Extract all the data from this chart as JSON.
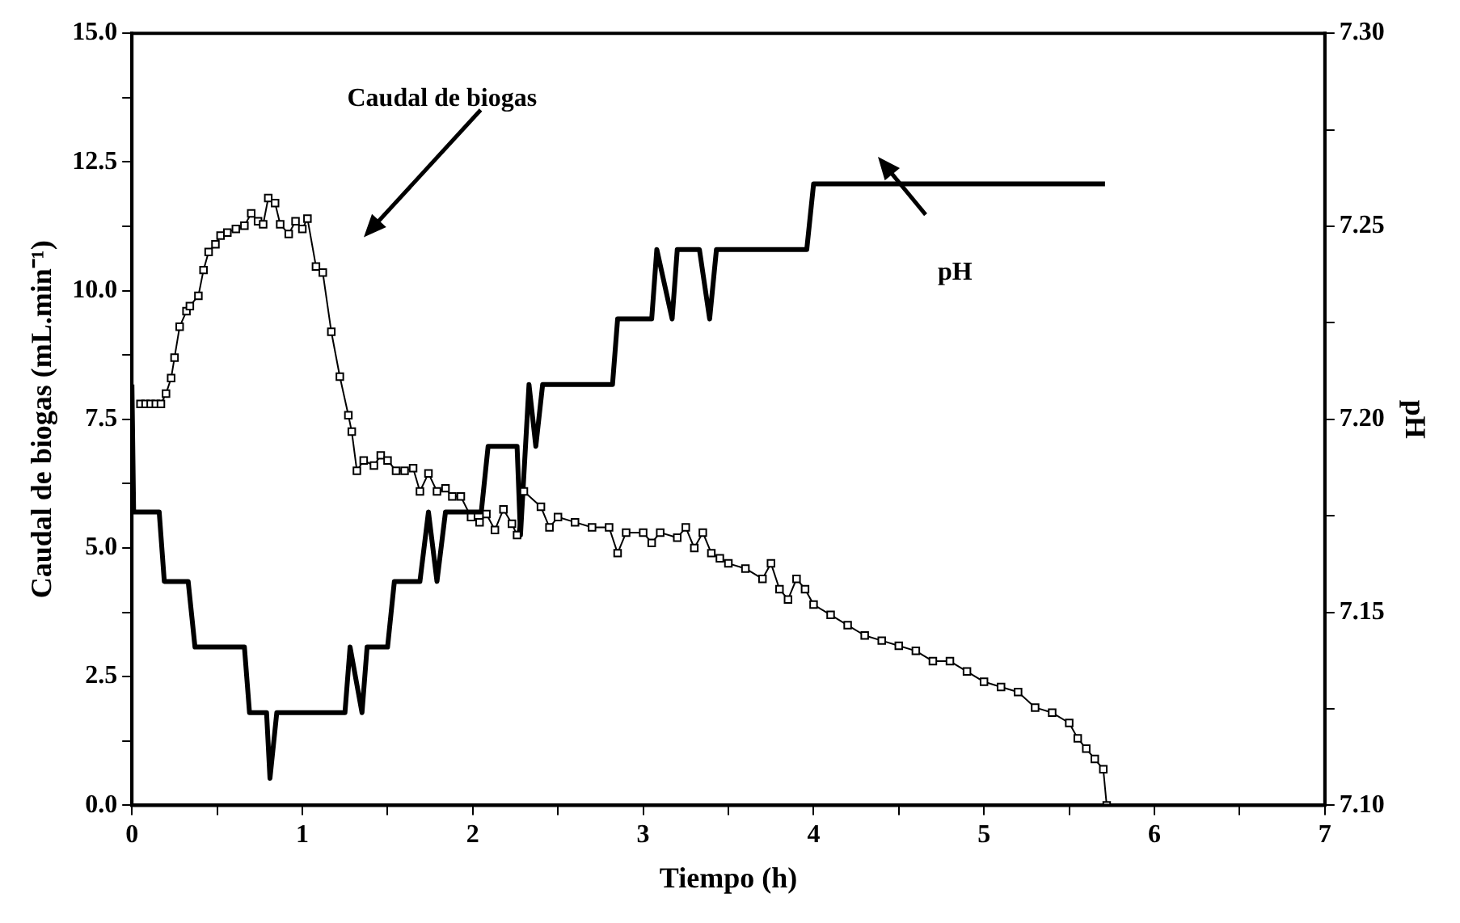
{
  "chart_data": {
    "type": "line",
    "xlabel": "Tiempo (h)",
    "ylabel": "Caudal de biogas (mL.min⁻¹)",
    "y2label": "pH",
    "grid": false,
    "legend": false,
    "xlim": [
      0,
      7
    ],
    "xticks": [
      0,
      {
        "value": 0.5,
        "label": null
      },
      1,
      {
        "value": 1.5,
        "label": null
      },
      2,
      {
        "value": 2.5,
        "label": null
      },
      3,
      {
        "value": 3.5,
        "label": null
      },
      4,
      {
        "value": 4.5,
        "label": null
      },
      5,
      {
        "value": 5.5,
        "label": null
      },
      6,
      {
        "value": 6.5,
        "label": null
      },
      7
    ],
    "ylim": [
      0,
      15
    ],
    "yticks": [
      {
        "value": 0,
        "label": "0.0"
      },
      {
        "value": 1.25,
        "label": null
      },
      {
        "value": 2.5,
        "label": "2.5"
      },
      {
        "value": 3.75,
        "label": null
      },
      {
        "value": 5,
        "label": "5.0"
      },
      {
        "value": 6.25,
        "label": null
      },
      {
        "value": 7.5,
        "label": "7.5"
      },
      {
        "value": 8.75,
        "label": null
      },
      {
        "value": 10,
        "label": "10.0"
      },
      {
        "value": 11.25,
        "label": null
      },
      {
        "value": 12.5,
        "label": "12.5"
      },
      {
        "value": 13.75,
        "label": null
      },
      {
        "value": 15,
        "label": "15.0"
      }
    ],
    "y2lim": [
      7.1,
      7.3
    ],
    "y2ticks": [
      {
        "value": 7.1,
        "label": "7.10"
      },
      {
        "value": 7.125,
        "label": null
      },
      {
        "value": 7.15,
        "label": "7.15"
      },
      {
        "value": 7.175,
        "label": null
      },
      {
        "value": 7.2,
        "label": "7.20"
      },
      {
        "value": 7.225,
        "label": null
      },
      {
        "value": 7.25,
        "label": "7.25"
      },
      {
        "value": 7.275,
        "label": null
      },
      {
        "value": 7.3,
        "label": "7.30"
      }
    ],
    "series": [
      {
        "name": "Caudal de biogas",
        "color": "#000000",
        "marker": "square",
        "x": [
          0.05,
          0.08,
          0.11,
          0.14,
          0.17,
          0.2,
          0.23,
          0.25,
          0.28,
          0.32,
          0.34,
          0.39,
          0.42,
          0.45,
          0.49,
          0.52,
          0.56,
          0.61,
          0.66,
          0.7,
          0.74,
          0.77,
          0.8,
          0.84,
          0.87,
          0.92,
          0.96,
          1.0,
          1.03,
          1.08,
          1.12,
          1.17,
          1.22,
          1.27,
          1.29,
          1.32,
          1.36,
          1.42,
          1.46,
          1.5,
          1.55,
          1.6,
          1.65,
          1.69,
          1.74,
          1.79,
          1.84,
          1.88,
          1.93,
          1.99,
          2.04,
          2.08,
          2.13,
          2.18,
          2.23,
          2.26,
          2.3,
          2.4,
          2.45,
          2.5,
          2.6,
          2.7,
          2.8,
          2.85,
          2.9,
          3.0,
          3.05,
          3.1,
          3.2,
          3.25,
          3.3,
          3.35,
          3.4,
          3.45,
          3.5,
          3.6,
          3.7,
          3.75,
          3.8,
          3.85,
          3.9,
          3.95,
          4.0,
          4.1,
          4.2,
          4.3,
          4.4,
          4.5,
          4.6,
          4.7,
          4.8,
          4.9,
          5.0,
          5.1,
          5.2,
          5.3,
          5.4,
          5.5,
          5.55,
          5.6,
          5.65,
          5.7,
          5.72
        ],
        "values": [
          7.8,
          7.8,
          7.8,
          7.8,
          7.8,
          8.0,
          8.3,
          8.7,
          9.3,
          9.6,
          9.7,
          9.9,
          10.4,
          10.75,
          10.9,
          11.07,
          11.13,
          11.2,
          11.26,
          11.5,
          11.35,
          11.29,
          11.8,
          11.7,
          11.29,
          11.1,
          11.35,
          11.2,
          11.4,
          10.47,
          10.35,
          9.2,
          8.33,
          7.58,
          7.26,
          6.5,
          6.7,
          6.6,
          6.8,
          6.7,
          6.5,
          6.5,
          6.55,
          6.1,
          6.45,
          6.1,
          6.16,
          6.0,
          6.0,
          5.6,
          5.5,
          5.66,
          5.35,
          5.75,
          5.47,
          5.25,
          6.1,
          5.8,
          5.4,
          5.6,
          5.5,
          5.4,
          5.4,
          4.9,
          5.3,
          5.3,
          5.1,
          5.3,
          5.2,
          5.4,
          5.0,
          5.3,
          4.9,
          4.8,
          4.7,
          4.6,
          4.4,
          4.7,
          4.2,
          4.0,
          4.4,
          4.2,
          3.9,
          3.7,
          3.5,
          3.3,
          3.2,
          3.1,
          3.0,
          2.8,
          2.8,
          2.6,
          2.4,
          2.3,
          2.2,
          1.9,
          1.8,
          1.6,
          1.3,
          1.1,
          0.9,
          0.7,
          0.0
        ]
      },
      {
        "name": "pH",
        "color": "#000000",
        "marker": "none",
        "axis": "y2",
        "x": [
          0,
          0.01,
          0.16,
          0.19,
          0.33,
          0.37,
          0.66,
          0.69,
          0.79,
          0.81,
          0.85,
          1.25,
          1.28,
          1.35,
          1.38,
          1.5,
          1.54,
          1.69,
          1.74,
          1.79,
          1.84,
          2.05,
          2.09,
          2.26,
          2.28,
          2.33,
          2.37,
          2.41,
          2.82,
          2.85,
          3.05,
          3.08,
          3.17,
          3.2,
          3.33,
          3.39,
          3.43,
          3.96,
          4.0,
          5.71
        ],
        "values": [
          7.209,
          7.176,
          7.176,
          7.158,
          7.158,
          7.141,
          7.141,
          7.124,
          7.124,
          7.107,
          7.124,
          7.124,
          7.141,
          7.124,
          7.141,
          7.141,
          7.158,
          7.158,
          7.176,
          7.158,
          7.176,
          7.176,
          7.193,
          7.193,
          7.17,
          7.209,
          7.193,
          7.209,
          7.209,
          7.226,
          7.226,
          7.244,
          7.226,
          7.244,
          7.244,
          7.226,
          7.244,
          7.244,
          7.261,
          7.261
        ]
      }
    ]
  }
}
